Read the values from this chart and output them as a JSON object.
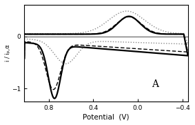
{
  "title": "A",
  "xlabel": "Potential  (V)",
  "ylabel": "i / iₚ,α",
  "xlim": [
    1.02,
    -0.45
  ],
  "ylim": [
    -1.25,
    0.6
  ],
  "yticks": [
    0.0,
    -1.0
  ],
  "xticks": [
    0.8,
    0.4,
    0.0,
    -0.4
  ],
  "background": "#ffffff",
  "solid_color": "#000000",
  "solid_lw": 1.6,
  "dashed_color": "#000000",
  "dashed_lw": 1.0,
  "dotted_color": "#888888",
  "dotted_lw": 1.0
}
